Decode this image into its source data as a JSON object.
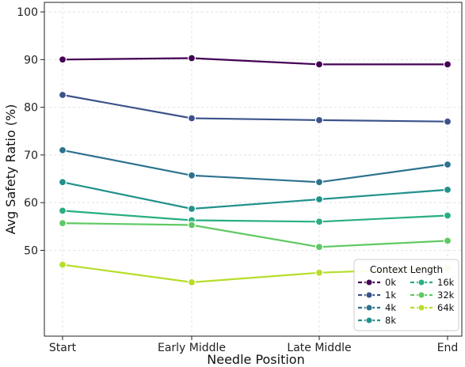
{
  "chart_data": {
    "type": "line",
    "xlabel": "Needle Position",
    "ylabel": "Avg Safety Ratio (%)",
    "categories": [
      "Start",
      "Early Middle",
      "Late Middle",
      "End"
    ],
    "ylim": [
      32,
      102
    ],
    "yticks": [
      50,
      60,
      70,
      80,
      90,
      100
    ],
    "grid": true,
    "legend": {
      "title": "Context Length",
      "placement": "lower-right",
      "columns": 2
    },
    "series": [
      {
        "name": "0k",
        "color": "#440154",
        "values": [
          90.0,
          90.3,
          89.0,
          89.0
        ]
      },
      {
        "name": "1k",
        "color": "#3b528b",
        "values": [
          82.6,
          77.7,
          77.3,
          77.0
        ]
      },
      {
        "name": "4k",
        "color": "#2c728e",
        "values": [
          71.0,
          65.7,
          64.3,
          68.0
        ]
      },
      {
        "name": "8k",
        "color": "#21918c",
        "values": [
          64.3,
          58.7,
          60.7,
          62.7
        ]
      },
      {
        "name": "16k",
        "color": "#28ae80",
        "values": [
          58.3,
          56.3,
          56.0,
          57.3
        ]
      },
      {
        "name": "32k",
        "color": "#5ec962",
        "values": [
          55.7,
          55.3,
          50.7,
          52.0
        ]
      },
      {
        "name": "64k",
        "color": "#b5de2b",
        "values": [
          47.0,
          43.3,
          45.3,
          46.3
        ]
      }
    ]
  }
}
